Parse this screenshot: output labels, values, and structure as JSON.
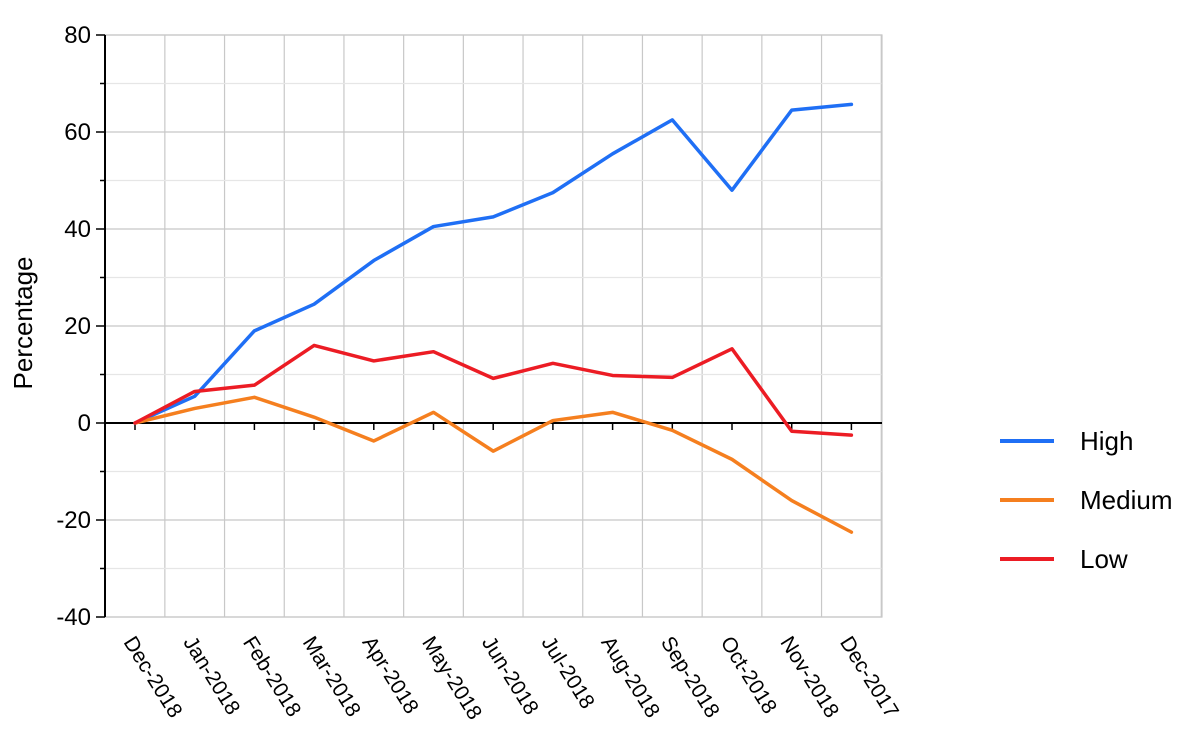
{
  "chart_data": {
    "type": "line",
    "title": "",
    "xlabel": "",
    "ylabel": "Percentage",
    "ylim": [
      -40,
      80
    ],
    "yticks": [
      "80",
      "60",
      "40",
      "20",
      "0",
      "-20",
      "-40"
    ],
    "grid": true,
    "legend_position": "right",
    "categories": [
      "Dec-2018",
      "Jan-2018",
      "Feb-2018",
      "Mar-2018",
      "Apr-2018",
      "May-2018",
      "Jun-2018",
      "Jul-2018",
      "Aug-2018",
      "Sep-2018",
      "Oct-2018",
      "Nov-2018",
      "Dec-2017"
    ],
    "series": [
      {
        "name": "High",
        "color": "#1f6ff5",
        "x": [
          0,
          1,
          2,
          3,
          4,
          5,
          6,
          7,
          8,
          9,
          10,
          11,
          12
        ],
        "values": [
          0,
          5.5,
          19,
          24.5,
          33.5,
          40.5,
          42.5,
          47.5,
          55.5,
          62.5,
          48,
          64.5,
          65.7
        ]
      },
      {
        "name": "Medium",
        "color": "#f57f1f",
        "x": [
          0,
          1,
          2,
          3,
          4,
          5,
          6,
          7,
          8,
          9,
          10,
          11,
          12
        ],
        "values": [
          0,
          3,
          5.3,
          1.2,
          -3.7,
          2.2,
          -5.8,
          0.5,
          2.2,
          -1.5,
          -7.5,
          -16,
          -22.5
        ]
      },
      {
        "name": "Low",
        "color": "#ec1c24",
        "x": [
          0,
          1,
          2,
          3,
          4,
          5,
          6,
          7,
          8,
          9,
          10,
          11,
          12
        ],
        "values": [
          0,
          6.5,
          7.8,
          16,
          12.8,
          14.7,
          9.2,
          12.3,
          9.8,
          9.4,
          15.3,
          -1.7,
          -2.5
        ]
      }
    ]
  }
}
